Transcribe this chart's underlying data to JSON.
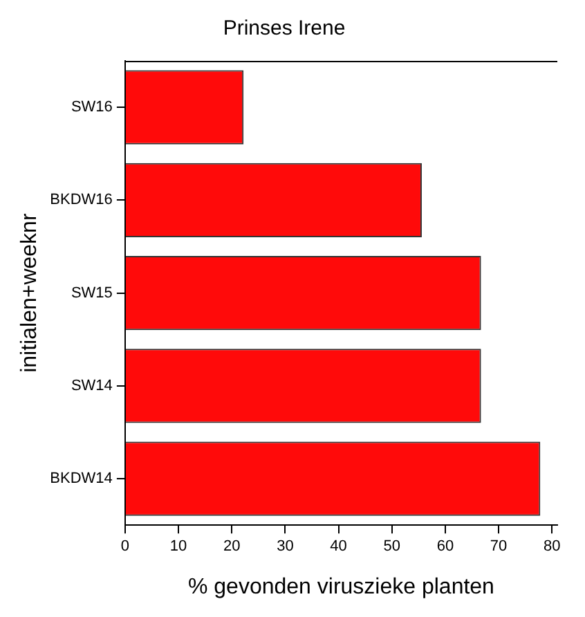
{
  "chart_data": {
    "type": "bar",
    "orientation": "horizontal",
    "title": "Prinses Irene",
    "xlabel": "% gevonden viruszieke planten",
    "ylabel": "initialen+weeknr",
    "categories": [
      "SW16",
      "BKDW16",
      "SW15",
      "SW14",
      "BKDW14"
    ],
    "values": [
      22.2,
      55.6,
      66.7,
      66.7,
      77.8
    ],
    "color": "#ff0a0a",
    "xlim": [
      0,
      81
    ],
    "xticks": [
      0,
      10,
      20,
      30,
      40,
      50,
      60,
      70,
      80
    ],
    "grid": false,
    "legend": false
  }
}
